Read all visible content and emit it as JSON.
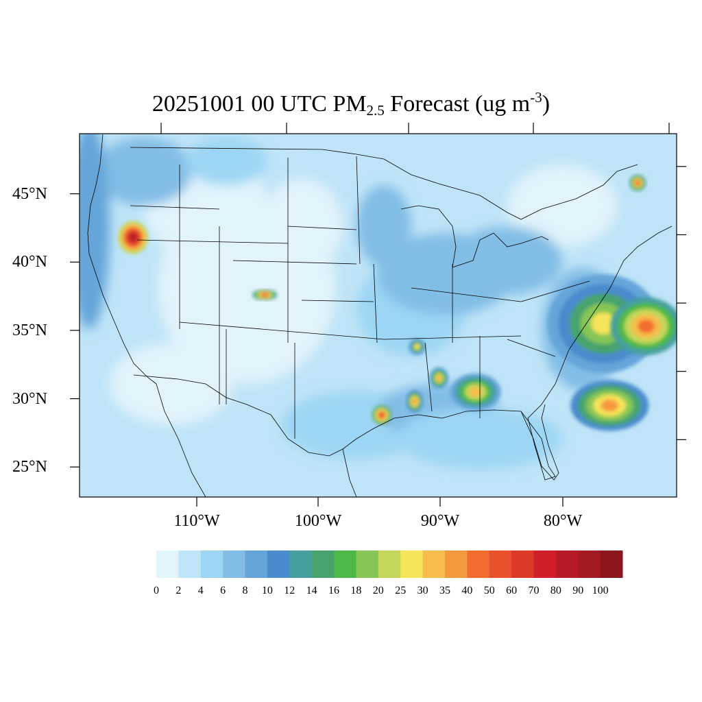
{
  "title": {
    "prefix": "20251001 00 UTC PM",
    "subscript": "2.5",
    "middle": " Forecast (ug m",
    "superscript": "-3",
    "suffix": ")"
  },
  "map": {
    "lon_range": [
      -120,
      -71
    ],
    "lat_range": [
      22.8,
      49.4
    ],
    "lat_ticks": [
      "45°N",
      "40°N",
      "35°N",
      "30°N",
      "25°N"
    ],
    "lon_ticks": [
      "110°W",
      "100°W",
      "90°W",
      "80°W"
    ]
  },
  "colorbar": {
    "labels": [
      "0",
      "2",
      "4",
      "6",
      "8",
      "10",
      "12",
      "14",
      "16",
      "18",
      "20",
      "25",
      "30",
      "35",
      "40",
      "50",
      "60",
      "70",
      "80",
      "90",
      "100"
    ],
    "colors": [
      "#e1f3fb",
      "#bfe4f7",
      "#9dd6f4",
      "#82bde6",
      "#65a5d9",
      "#4a8bcd",
      "#469f9f",
      "#47a36d",
      "#4bb847",
      "#86c656",
      "#c3d85b",
      "#f6e55a",
      "#f8bc4c",
      "#f5993f",
      "#f16c2e",
      "#e9502c",
      "#dc3b2a",
      "#d11f2a",
      "#b81b28",
      "#a31a22",
      "#8d161d"
    ]
  },
  "plumes": [
    {
      "lon": -77,
      "lat": 35.5,
      "rx": 80,
      "ry": 70,
      "level": 11
    },
    {
      "lon": -73.5,
      "lat": 35.3,
      "rx": 50,
      "ry": 40,
      "level": 14
    },
    {
      "lon": -76.5,
      "lat": 29.5,
      "rx": 55,
      "ry": 35,
      "level": 13
    },
    {
      "lon": -115.6,
      "lat": 41.8,
      "rx": 20,
      "ry": 22,
      "level": 18
    },
    {
      "lon": -87.5,
      "lat": 30.5,
      "rx": 35,
      "ry": 25,
      "level": 12
    },
    {
      "lon": -95.2,
      "lat": 28.8,
      "rx": 12,
      "ry": 12,
      "level": 15
    },
    {
      "lon": -92.5,
      "lat": 29.8,
      "rx": 10,
      "ry": 14,
      "level": 13
    },
    {
      "lon": -104.8,
      "lat": 37.6,
      "rx": 16,
      "ry": 6,
      "level": 14
    },
    {
      "lon": -74.2,
      "lat": 45.8,
      "rx": 10,
      "ry": 10,
      "level": 14
    },
    {
      "lon": -90.5,
      "lat": 31.5,
      "rx": 12,
      "ry": 14,
      "level": 12
    },
    {
      "lon": -92.3,
      "lat": 33.8,
      "rx": 10,
      "ry": 10,
      "level": 11
    }
  ]
}
